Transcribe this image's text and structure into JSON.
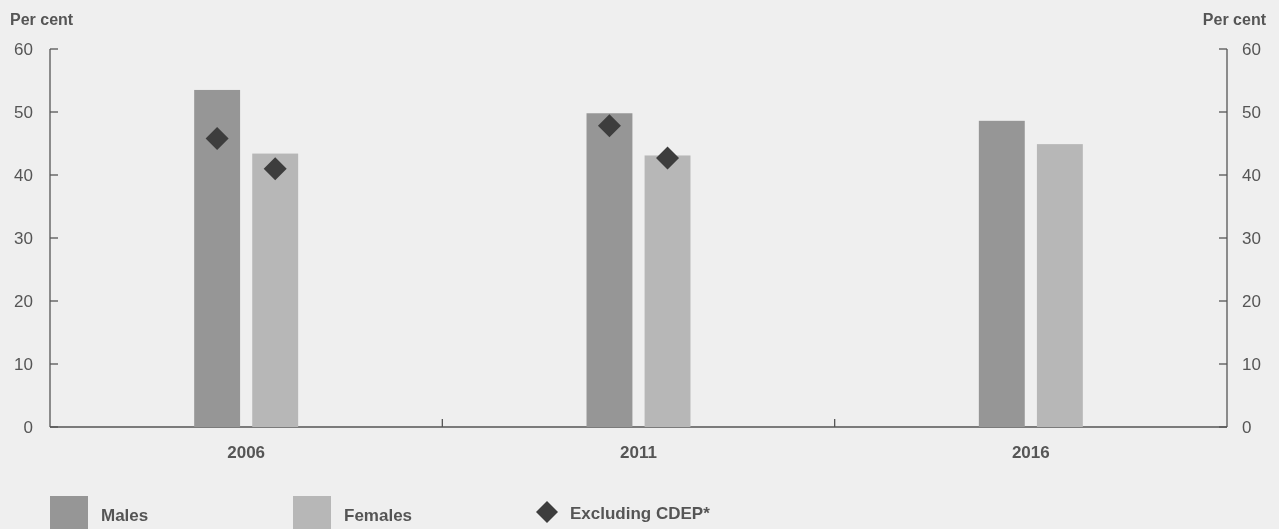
{
  "chart_data": {
    "type": "bar",
    "categories": [
      "2006",
      "2011",
      "2016"
    ],
    "ylabel": "Per cent",
    "y2label": "Per cent",
    "series": [
      {
        "name": "Males",
        "color": "#969696",
        "values": [
          53.5,
          49.8,
          48.6
        ]
      },
      {
        "name": "Females",
        "color": "#b7b7b7",
        "values": [
          43.4,
          43.1,
          44.9
        ]
      },
      {
        "name": "Excluding CDEP*",
        "type": "scatter",
        "color": "#3d3d3d",
        "values": [
          45.8,
          47.8,
          null
        ]
      },
      {
        "type": "scatter",
        "color": "#3d3d3d",
        "values": [
          41.0,
          42.7,
          null
        ]
      }
    ],
    "ylim": [
      0,
      60
    ],
    "yticks": [
      0,
      10,
      20,
      30,
      40,
      50,
      60
    ],
    "y2lim": [
      0,
      60
    ],
    "y2ticks": [
      0,
      10,
      20,
      30,
      40,
      50,
      60
    ],
    "legend": "bottom left",
    "marker": "diamond"
  }
}
